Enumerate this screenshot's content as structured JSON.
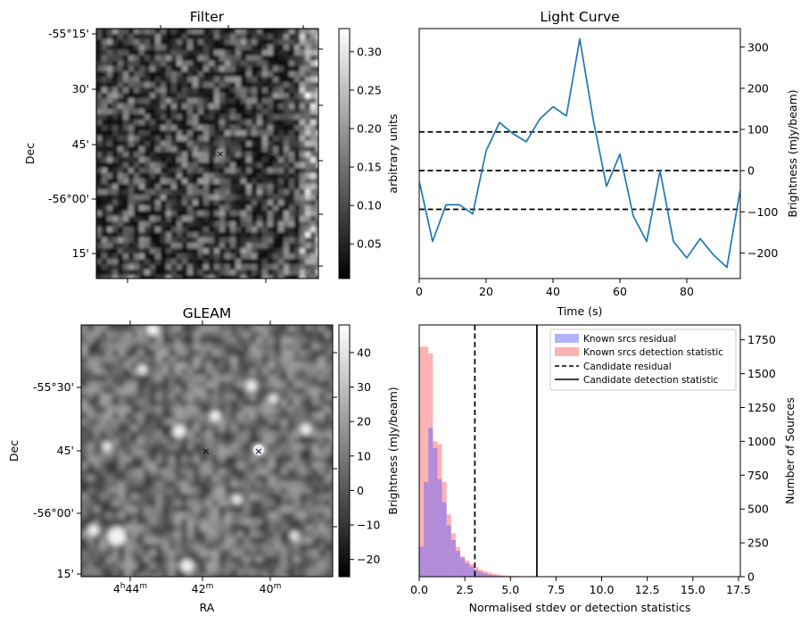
{
  "filter_panel": {
    "title": "Filter",
    "ylabel": "Dec",
    "yticks": [
      "-55°15'",
      "30'",
      "45'",
      "-56°00'",
      "15'"
    ],
    "colorbar": {
      "label": "arbitrary units",
      "ticks": [
        "0.30",
        "0.25",
        "0.20",
        "0.15",
        "0.10",
        "0.05"
      ],
      "range": [
        0.005,
        0.33
      ]
    }
  },
  "gleam_panel": {
    "title": "GLEAM",
    "ylabel": "Dec",
    "xlabel": "RA",
    "yticks": [
      "-55°30'",
      "45'",
      "-56°00'",
      "15'"
    ],
    "xticks": [
      {
        "main": "4",
        "sup1": "h",
        "mid": "44",
        "sup2": "m"
      },
      {
        "main": "42",
        "sup1": "m"
      },
      {
        "main": "40",
        "sup1": "m"
      }
    ],
    "colorbar": {
      "label": "Brightness (mJy/beam)",
      "ticks": [
        "40",
        "30",
        "20",
        "10",
        "0",
        "−10",
        "−20"
      ],
      "range": [
        -25,
        48
      ]
    }
  },
  "markers": {
    "candidate_color": "#ff0000",
    "reference_color": "#0000ff"
  },
  "chart_data": [
    {
      "type": "line",
      "title": "Light Curve",
      "xlabel": "Time (s)",
      "ylabel": "Brightness (mJy/beam)",
      "xlim": [
        0,
        96
      ],
      "ylim": [
        -262,
        345
      ],
      "xticks": [
        0,
        20,
        40,
        60,
        80
      ],
      "yticks": [
        -200,
        -100,
        0,
        100,
        200,
        300
      ],
      "ytick_labels": [
        "−200",
        "−100",
        "0",
        "100",
        "200",
        "300"
      ],
      "series": [
        {
          "color": "#1f77b4",
          "x": [
            0,
            4,
            8,
            12,
            16,
            20,
            24,
            28,
            32,
            36,
            40,
            44,
            48,
            52,
            56,
            60,
            64,
            68,
            72,
            76,
            80,
            84,
            88,
            92,
            96
          ],
          "y": [
            -25,
            -172,
            -83,
            -83,
            -105,
            48,
            117,
            90,
            70,
            125,
            155,
            133,
            320,
            125,
            -38,
            40,
            -110,
            -172,
            0,
            -172,
            -212,
            -165,
            -205,
            -235,
            -45
          ]
        }
      ],
      "hlines": [
        94,
        0,
        -94
      ],
      "hline_style": "dashed"
    },
    {
      "type": "bar",
      "title": "",
      "xlabel": "Normalised stdev or detection statistics",
      "ylabel": "Number of Sources",
      "left_ylabel": "Brightness (mJy/beam)",
      "xlim": [
        0,
        17.6
      ],
      "ylim": [
        0,
        1860
      ],
      "xticks": [
        0.0,
        2.5,
        5.0,
        7.5,
        10.0,
        12.5,
        15.0,
        17.5
      ],
      "xtick_labels": [
        "0.0",
        "2.5",
        "5.0",
        "7.5",
        "10.0",
        "12.5",
        "15.0",
        "17.5"
      ],
      "yticks": [
        0,
        250,
        500,
        750,
        1000,
        1250,
        1500,
        1750
      ],
      "bin_width": 0.25,
      "series": [
        {
          "name": "Known srcs residual",
          "color": "#6666ff",
          "values": [
            220,
            700,
            1100,
            950,
            720,
            550,
            380,
            270,
            190,
            140,
            100,
            75,
            50,
            35,
            25,
            15,
            10,
            6,
            4,
            2
          ]
        },
        {
          "name": "Known srcs detection statistic",
          "color": "#ff6666",
          "values": [
            1700,
            1700,
            1650,
            1000,
            980,
            700,
            460,
            320,
            220,
            150,
            120,
            95,
            70,
            52,
            40,
            30,
            22,
            15,
            10,
            8,
            6,
            5,
            4,
            3,
            3,
            2,
            2,
            2,
            2,
            1,
            1,
            1,
            1,
            1,
            1,
            1,
            1,
            1,
            1,
            1,
            1,
            1,
            1,
            1,
            1,
            1,
            1,
            1,
            1,
            1,
            1,
            1,
            1,
            1,
            1,
            1,
            1,
            1,
            1,
            1,
            1,
            1,
            1,
            1,
            1,
            1,
            1,
            1
          ]
        }
      ],
      "vlines": [
        {
          "name": "Candidate residual",
          "x": 3.05,
          "style": "dashed"
        },
        {
          "name": "Candidate detection statistic",
          "x": 6.45,
          "style": "solid"
        }
      ],
      "legend": "top-right"
    }
  ]
}
